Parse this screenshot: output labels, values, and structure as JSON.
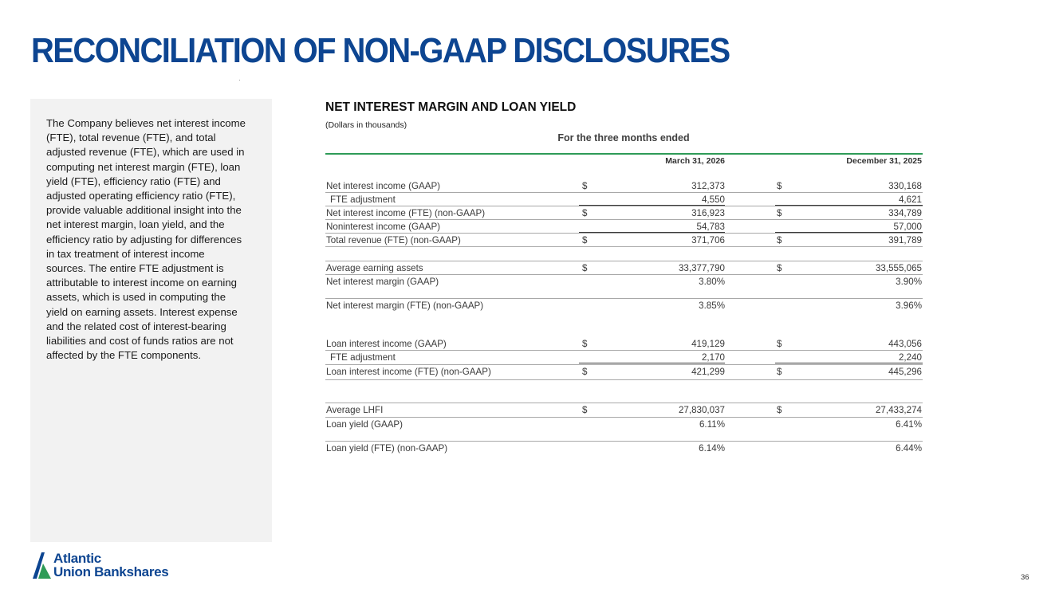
{
  "title": "RECONCILIATION OF NON-GAAP DISCLOSURES",
  "sidebar": {
    "text": "The Company believes net interest income (FTE), total revenue (FTE), and total adjusted revenue (FTE), which are used in computing net interest margin (FTE), loan yield (FTE), efficiency ratio (FTE) and adjusted operating efficiency ratio (FTE), provide valuable additional insight into the net interest margin, loan yield, and the efficiency ratio by adjusting for differences in tax treatment of interest income sources. The entire FTE adjustment is attributable to interest income on earning assets, which is used in computing the yield on earning assets. Interest expense and the related cost of interest-bearing liabilities and cost of funds ratios are not affected by the FTE components."
  },
  "section": {
    "title": "NET INTEREST MARGIN AND LOAN YIELD",
    "subtitle": "(Dollars in thousands)",
    "period_header": "For the three months ended",
    "columns": [
      "March 31, 2026",
      "December 31, 2025"
    ]
  },
  "rows": [
    {
      "label": "Net interest income (GAAP)",
      "d1": "$",
      "v1": "312,373",
      "d2": "$",
      "v2": "330,168"
    },
    {
      "label": "FTE adjustment",
      "indent": true,
      "d1": "",
      "v1": "4,550",
      "d2": "",
      "v2": "4,621"
    },
    {
      "label": "Net interest income (FTE) (non-GAAP)",
      "d1": "$",
      "v1": "316,923",
      "d2": "$",
      "v2": "334,789"
    },
    {
      "label": "Noninterest income (GAAP)",
      "d1": "",
      "v1": "54,783",
      "d2": "",
      "v2": "57,000"
    },
    {
      "label": "Total revenue (FTE) (non-GAAP)",
      "d1": "$",
      "v1": "371,706",
      "d2": "$",
      "v2": "391,789"
    },
    {
      "label": "Average earning assets",
      "d1": "$",
      "v1": "33,377,790",
      "d2": "$",
      "v2": "33,555,065"
    },
    {
      "label": "Net interest margin (GAAP)",
      "d1": "",
      "v1": "3.80%",
      "d2": "",
      "v2": "3.90%"
    },
    {
      "label": "Net interest margin (FTE) (non-GAAP)",
      "d1": "",
      "v1": "3.85%",
      "d2": "",
      "v2": "3.96%"
    },
    {
      "label": "Loan interest income (GAAP)",
      "d1": "$",
      "v1": "419,129",
      "d2": "$",
      "v2": "443,056"
    },
    {
      "label": "FTE adjustment",
      "indent": true,
      "d1": "",
      "v1": "2,170",
      "d2": "",
      "v2": "2,240"
    },
    {
      "label": "Loan interest income (FTE) (non-GAAP)",
      "d1": "$",
      "v1": "421,299",
      "d2": "$",
      "v2": "445,296"
    },
    {
      "label": "Average LHFI",
      "d1": "$",
      "v1": "27,830,037",
      "d2": "$",
      "v2": "27,433,274"
    },
    {
      "label": "Loan yield (GAAP)",
      "d1": "",
      "v1": "6.11%",
      "d2": "",
      "v2": "6.41%"
    },
    {
      "label": "Loan yield (FTE) (non-GAAP)",
      "d1": "",
      "v1": "6.14%",
      "d2": "",
      "v2": "6.44%"
    }
  ],
  "logo": {
    "line1": "Atlantic",
    "line2": "Union Bankshares",
    "brand_blue": "#0d4591",
    "brand_green": "#2e9b57"
  },
  "page_number": "36"
}
